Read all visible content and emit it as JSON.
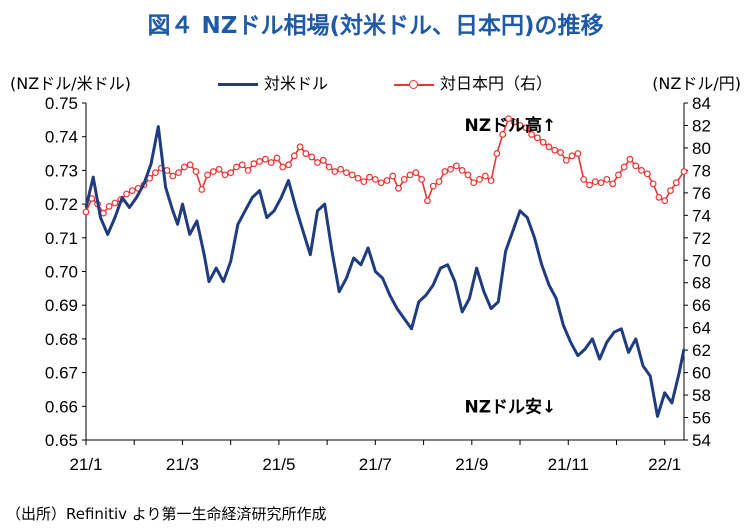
{
  "header": {
    "title": "図４ NZドル相場(対米ドル、日本円)の推移"
  },
  "footer": {
    "source": "（出所）Refinitiv より第一生命経済研究所作成"
  },
  "chart_data": {
    "type": "line",
    "ylabel_left": "(NZドル/米ドル)",
    "ylabel_right": "(NZドル/円)",
    "xlabel": "",
    "legend_placement": "top",
    "x_tick_labels": [
      "21/1",
      "21/3",
      "21/5",
      "21/7",
      "21/9",
      "21/11",
      "22/1"
    ],
    "y_left_ticks": [
      "0.65",
      "0.66",
      "0.67",
      "0.68",
      "0.69",
      "0.70",
      "0.71",
      "0.72",
      "0.73",
      "0.74",
      "0.75"
    ],
    "y_right_ticks": [
      "54",
      "56",
      "58",
      "60",
      "62",
      "64",
      "66",
      "68",
      "70",
      "72",
      "74",
      "76",
      "78",
      "80",
      "82",
      "84"
    ],
    "ylim_left": [
      0.65,
      0.75
    ],
    "ylim_right": [
      54,
      84
    ],
    "x_range_months": [
      0,
      12.4
    ],
    "annotations": [
      {
        "text": "NZドル高↑",
        "x": 8.8,
        "y_left": 0.7435
      },
      {
        "text": "NZドル安↓",
        "x": 8.8,
        "y_left": 0.66
      }
    ],
    "series": [
      {
        "name": "対米ドル",
        "axis": "left",
        "color": "#1f3c80",
        "marker": "none",
        "x": [
          0,
          0.15,
          0.3,
          0.45,
          0.6,
          0.75,
          0.9,
          1.05,
          1.2,
          1.35,
          1.5,
          1.65,
          1.8,
          1.9,
          2.0,
          2.15,
          2.3,
          2.45,
          2.55,
          2.7,
          2.85,
          3.0,
          3.15,
          3.3,
          3.45,
          3.6,
          3.75,
          3.9,
          4.05,
          4.2,
          4.35,
          4.5,
          4.65,
          4.8,
          4.95,
          5.1,
          5.25,
          5.4,
          5.55,
          5.7,
          5.85,
          6.0,
          6.15,
          6.3,
          6.45,
          6.6,
          6.75,
          6.9,
          7.05,
          7.2,
          7.35,
          7.5,
          7.65,
          7.8,
          7.95,
          8.1,
          8.25,
          8.4,
          8.55,
          8.7,
          8.85,
          9.0,
          9.15,
          9.3,
          9.45,
          9.6,
          9.75,
          9.9,
          10.05,
          10.2,
          10.35,
          10.5,
          10.65,
          10.8,
          10.95,
          11.1,
          11.25,
          11.4,
          11.55,
          11.7,
          11.85,
          12.0,
          12.15,
          12.3,
          12.4
        ],
        "values": [
          0.719,
          0.728,
          0.716,
          0.711,
          0.716,
          0.722,
          0.719,
          0.722,
          0.726,
          0.732,
          0.743,
          0.725,
          0.718,
          0.714,
          0.72,
          0.711,
          0.715,
          0.705,
          0.697,
          0.701,
          0.697,
          0.703,
          0.714,
          0.718,
          0.722,
          0.724,
          0.716,
          0.718,
          0.722,
          0.727,
          0.719,
          0.712,
          0.705,
          0.718,
          0.72,
          0.706,
          0.694,
          0.698,
          0.704,
          0.702,
          0.707,
          0.7,
          0.698,
          0.693,
          0.689,
          0.686,
          0.683,
          0.691,
          0.693,
          0.696,
          0.701,
          0.702,
          0.697,
          0.688,
          0.692,
          0.701,
          0.694,
          0.689,
          0.691,
          0.706,
          0.712,
          0.718,
          0.716,
          0.71,
          0.702,
          0.696,
          0.692,
          0.684,
          0.679,
          0.675,
          0.677,
          0.68,
          0.674,
          0.679,
          0.682,
          0.683,
          0.676,
          0.68,
          0.672,
          0.669,
          0.657,
          0.664,
          0.661,
          0.67,
          0.677
        ]
      },
      {
        "name": "対日本円（右）",
        "axis": "right",
        "color": "#ee3333",
        "marker": "circle",
        "x": [
          0,
          0.12,
          0.24,
          0.36,
          0.48,
          0.6,
          0.72,
          0.84,
          0.96,
          1.08,
          1.2,
          1.32,
          1.44,
          1.56,
          1.68,
          1.8,
          1.92,
          2.04,
          2.16,
          2.28,
          2.4,
          2.52,
          2.64,
          2.76,
          2.88,
          3.0,
          3.12,
          3.24,
          3.36,
          3.48,
          3.6,
          3.72,
          3.84,
          3.96,
          4.08,
          4.2,
          4.32,
          4.44,
          4.56,
          4.68,
          4.8,
          4.92,
          5.04,
          5.16,
          5.28,
          5.4,
          5.52,
          5.64,
          5.76,
          5.88,
          6.0,
          6.12,
          6.24,
          6.36,
          6.48,
          6.6,
          6.72,
          6.84,
          6.96,
          7.08,
          7.2,
          7.32,
          7.44,
          7.56,
          7.68,
          7.8,
          7.92,
          8.04,
          8.16,
          8.28,
          8.4,
          8.52,
          8.64,
          8.76,
          8.88,
          9.0,
          9.12,
          9.24,
          9.36,
          9.48,
          9.6,
          9.72,
          9.84,
          9.96,
          10.08,
          10.2,
          10.32,
          10.44,
          10.56,
          10.68,
          10.8,
          10.92,
          11.04,
          11.16,
          11.28,
          11.4,
          11.52,
          11.64,
          11.76,
          11.88,
          12.0,
          12.12,
          12.24,
          12.4
        ],
        "values": [
          74.3,
          75.5,
          75.0,
          74.2,
          74.8,
          75.1,
          75.4,
          75.9,
          76.2,
          76.4,
          76.7,
          77.3,
          77.8,
          78.2,
          78.0,
          77.5,
          77.8,
          78.3,
          78.5,
          77.9,
          76.3,
          77.6,
          77.9,
          78.1,
          77.6,
          77.8,
          78.3,
          78.5,
          78.0,
          78.6,
          78.8,
          79.0,
          78.7,
          79.1,
          78.3,
          78.5,
          79.3,
          80.1,
          79.5,
          79.2,
          78.7,
          78.9,
          78.3,
          77.9,
          78.1,
          77.8,
          77.6,
          77.3,
          77.0,
          77.4,
          77.2,
          76.9,
          77.1,
          77.5,
          76.4,
          77.2,
          77.6,
          77.8,
          77.2,
          75.3,
          76.6,
          77.0,
          77.9,
          78.1,
          78.4,
          78.0,
          77.6,
          76.9,
          77.2,
          77.5,
          77.1,
          79.5,
          81.2,
          82.6,
          82.3,
          82.0,
          81.8,
          81.2,
          80.9,
          80.5,
          80.1,
          79.8,
          79.6,
          78.9,
          79.3,
          79.5,
          77.2,
          76.7,
          77.0,
          76.9,
          77.2,
          76.8,
          77.6,
          78.3,
          79.0,
          78.4,
          78.0,
          77.7,
          76.8,
          75.6,
          75.3,
          76.2,
          76.9,
          77.9
        ]
      }
    ]
  }
}
